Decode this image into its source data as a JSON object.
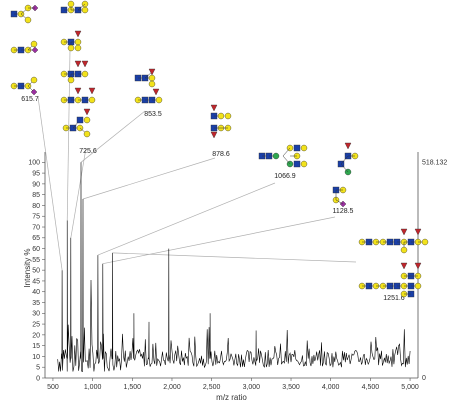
{
  "chart_data": {
    "type": "line",
    "title": "",
    "xlabel": "m/z ratio",
    "ylabel": "Intensity %",
    "xlim": [
      400,
      5100
    ],
    "ylim": [
      0,
      102
    ],
    "x_ticks": [
      500,
      1000,
      1500,
      2000,
      2500,
      3000,
      3500,
      4000,
      4500,
      5000
    ],
    "x_tick_labels": [
      "500",
      "1,000",
      "1,500",
      "2,000",
      "2,500",
      "3,000",
      "3,500",
      "4,000",
      "4,500",
      "5,000"
    ],
    "y_ticks": [
      0,
      5,
      10,
      15,
      20,
      25,
      30,
      35,
      40,
      45,
      50,
      55,
      60,
      65,
      70,
      75,
      80,
      85,
      90,
      95,
      100
    ],
    "y_tick_labels": [
      "0",
      "5",
      "10",
      "15",
      "20",
      "25",
      "30",
      "35",
      "40",
      "45",
      "50",
      "55",
      "60",
      "65",
      "70",
      "75",
      "80",
      "85",
      "90",
      "95",
      "100"
    ],
    "right_axis": {
      "max_label": "518.132",
      "min_label": "0"
    },
    "peaks": [
      {
        "x": 615.7,
        "y": 50,
        "label": "615.7"
      },
      {
        "x": 680,
        "y": 73,
        "label": ""
      },
      {
        "x": 725.6,
        "y": 65,
        "label": "725.6"
      },
      {
        "x": 853.5,
        "y": 100,
        "label": "853.5"
      },
      {
        "x": 878.6,
        "y": 83,
        "label": "878.6"
      },
      {
        "x": 1066.9,
        "y": 57,
        "label": "1066.9"
      },
      {
        "x": 1128.5,
        "y": 53,
        "label": "1128.5"
      },
      {
        "x": 1251.6,
        "y": 58,
        "label": "1251.6"
      },
      {
        "x": 1960,
        "y": 60,
        "label": ""
      },
      {
        "x": 1520,
        "y": 30,
        "label": ""
      },
      {
        "x": 1710,
        "y": 26,
        "label": ""
      },
      {
        "x": 2480,
        "y": 30,
        "label": ""
      },
      {
        "x": 3060,
        "y": 22,
        "label": ""
      }
    ],
    "noise": {
      "x_start": 560,
      "x_end": 5000,
      "base": 9,
      "amplitude": 8,
      "step": 12
    },
    "grid": false,
    "legend": "none"
  },
  "colors": {
    "line": "#000000",
    "leader": "#b0b0b0",
    "glcnac": "#1a3fa8",
    "galactose": "#f2e21b",
    "mannose": "#2fa84f",
    "fucose": "#c0262c",
    "sialic": "#9b2fa0",
    "outline": "#333333"
  }
}
